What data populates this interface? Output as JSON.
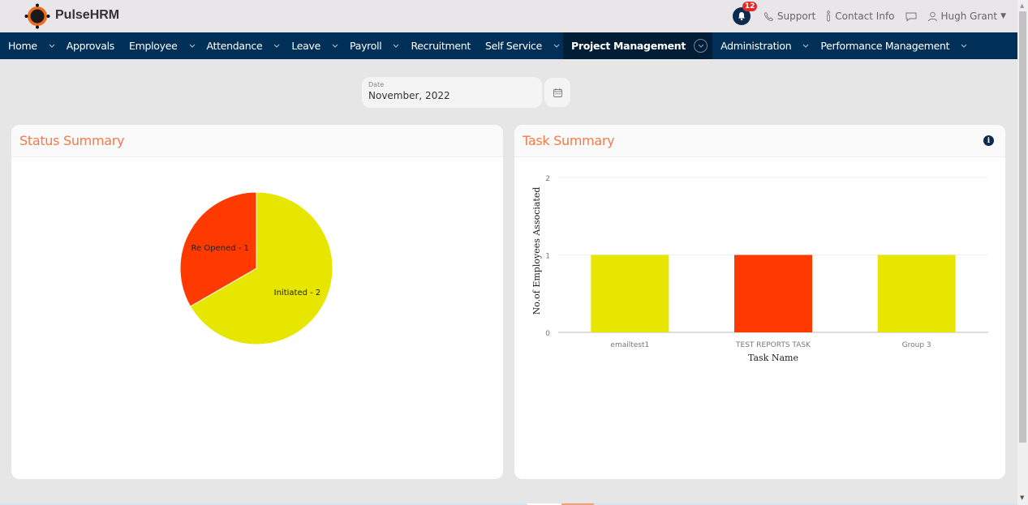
{
  "app": {
    "brand": "PulseHRM",
    "notifications_count": "12",
    "support_label": "Support",
    "contact_label": "Contact Info",
    "user_name": "Hugh Grant"
  },
  "nav": {
    "items": [
      {
        "label": "Home",
        "has_menu": true
      },
      {
        "label": "Approvals",
        "has_menu": false
      },
      {
        "label": "Employee",
        "has_menu": true
      },
      {
        "label": "Attendance",
        "has_menu": true
      },
      {
        "label": "Leave",
        "has_menu": true
      },
      {
        "label": "Payroll",
        "has_menu": true
      },
      {
        "label": "Recruitment",
        "has_menu": false
      },
      {
        "label": "Self Service",
        "has_menu": true
      },
      {
        "label": "Project Management",
        "has_menu": true,
        "active": true
      },
      {
        "label": "Administration",
        "has_menu": true
      },
      {
        "label": "Performance Management",
        "has_menu": true
      }
    ]
  },
  "filter": {
    "date_label": "Date",
    "date_value": "November, 2022"
  },
  "status_summary": {
    "title": "Status Summary"
  },
  "task_summary": {
    "title": "Task Summary"
  },
  "colors": {
    "accent": "#f47a4a",
    "nav_bg": "#003057",
    "red": "#ff3a00",
    "yellow": "#e6e600"
  },
  "chart_data": [
    {
      "type": "pie",
      "title": "Status Summary",
      "slices": [
        {
          "label": "Re Opened - 1",
          "name": "Re Opened",
          "value": 1,
          "color": "#ff3a00"
        },
        {
          "label": "Initiated - 2",
          "name": "Initiated",
          "value": 2,
          "color": "#e6e600"
        }
      ]
    },
    {
      "type": "bar",
      "title": "Task Summary",
      "categories": [
        "emailtest1",
        "TEST REPORTS TASK",
        "Group 3"
      ],
      "values": [
        1,
        1,
        1
      ],
      "colors": [
        "#e6e600",
        "#ff3a00",
        "#e6e600"
      ],
      "xlabel": "Task Name",
      "ylabel": "No.of Employees Associated",
      "ylim": [
        0,
        2
      ],
      "yticks": [
        "0",
        "1",
        "2"
      ],
      "grid": true
    }
  ]
}
